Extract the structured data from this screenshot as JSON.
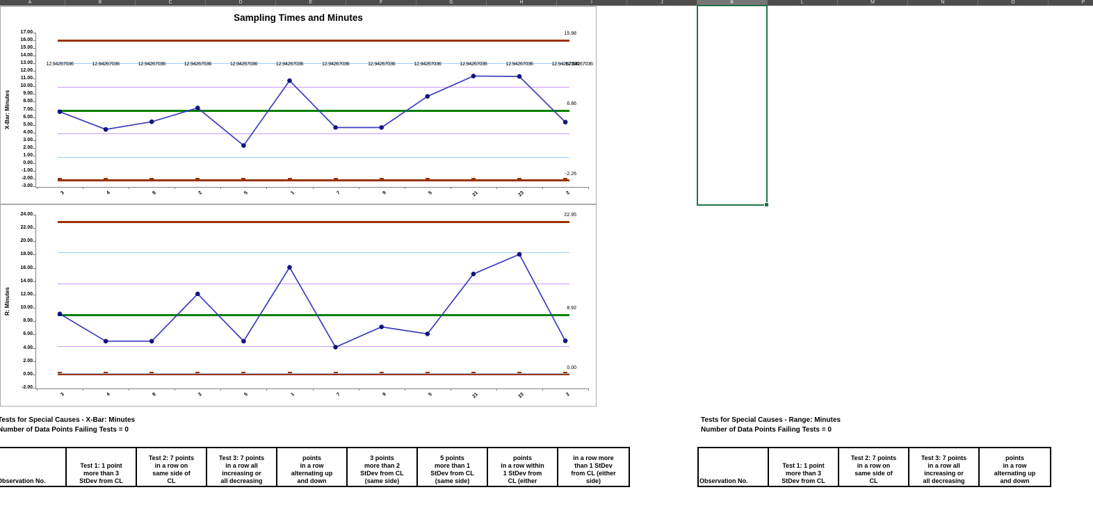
{
  "spreadsheet": {
    "column_headers": [
      "A",
      "B",
      "C",
      "D",
      "E",
      "F",
      "G",
      "H",
      "I",
      "J",
      "K",
      "L",
      "M",
      "N",
      "O",
      "P"
    ],
    "selected_column": "K"
  },
  "chart_data": [
    {
      "type": "line",
      "title": "Sampling Times and Minutes",
      "ylabel": "X-Bar: Minutes",
      "categories": [
        "3",
        "4",
        "8",
        "2",
        "5",
        "1",
        "7",
        "9",
        "5",
        "21",
        "23",
        "2"
      ],
      "series": [
        {
          "name": "X-Bar",
          "values": [
            6.7,
            4.4,
            5.4,
            7.2,
            2.3,
            10.75,
            4.65,
            4.65,
            8.7,
            11.35,
            11.3,
            5.35
          ]
        }
      ],
      "ylim": [
        -3,
        17
      ],
      "ytick_step": 1,
      "grid": false,
      "legend": "none",
      "series_line_color": "#3b3bbe",
      "series_marker_color": "#13137e",
      "control_lines": [
        {
          "name": "UCL",
          "value": 15.98,
          "label": "15.98",
          "color": "#993300",
          "weight": 3
        },
        {
          "name": "+2sigma",
          "value": 12.94267036,
          "point_label": "12.94267036",
          "color": "#99ccff",
          "weight": 1
        },
        {
          "name": "+1sigma",
          "value": 9.9,
          "color": "#cc99ff",
          "weight": 1
        },
        {
          "name": "CL",
          "value": 6.86,
          "label": "6.86",
          "color": "#008000",
          "weight": 3
        },
        {
          "name": "-1sigma",
          "value": 3.82,
          "color": "#cc99ff",
          "weight": 1
        },
        {
          "name": "-2sigma",
          "value": 0.78,
          "color": "#99ccff",
          "weight": 1
        },
        {
          "name": "LCL",
          "value": -2.26,
          "label": "-2.26",
          "color": "#993300",
          "weight": 3,
          "dashes": true
        }
      ]
    },
    {
      "type": "line",
      "title": "",
      "ylabel": "R: Minutes",
      "categories": [
        "3",
        "4",
        "8",
        "2",
        "5",
        "1",
        "7",
        "9",
        "5",
        "21",
        "23",
        "2"
      ],
      "series": [
        {
          "name": "Range",
          "values": [
            9.1,
            5.0,
            5.0,
            12.1,
            5.0,
            16.1,
            4.1,
            7.15,
            6.1,
            15.1,
            18.05,
            5.05
          ]
        }
      ],
      "ylim": [
        -2,
        24
      ],
      "ytick_step": 2,
      "grid": false,
      "legend": "none",
      "series_line_color": "#3b3bbe",
      "series_marker_color": "#13137e",
      "control_lines": [
        {
          "name": "UCL",
          "value": 22.95,
          "label": "22.95",
          "color": "#993300",
          "weight": 3
        },
        {
          "name": "+2sigma",
          "value": 18.27,
          "color": "#99ccff",
          "weight": 1
        },
        {
          "name": "+1sigma",
          "value": 13.6,
          "color": "#cc99ff",
          "weight": 1
        },
        {
          "name": "CL",
          "value": 8.92,
          "label": "8.92",
          "color": "#008000",
          "weight": 3
        },
        {
          "name": "-1sigma",
          "value": 4.24,
          "color": "#cc99ff",
          "weight": 1
        },
        {
          "name": "LCL",
          "value": 0.0,
          "label": "0.00",
          "color": "#993300",
          "weight": 3,
          "dashes": true
        },
        {
          "name": "-2sigma-clamped",
          "value": 0.1,
          "color": "#a8bdd4",
          "weight": 1
        }
      ]
    }
  ],
  "tables": [
    {
      "title": "Tests for Special Causes - X-Bar: Minutes",
      "subtitle": "Number of Data Points Failing Tests = 0",
      "headers": [
        "Observation No.",
        "Test 1: 1 point\nmore than 3\nStDev from CL",
        "Test 2: 7 points\nin a row on\nsame side of\nCL",
        "Test 3: 7 points\nin a row all\nincreasing or\nall decreasing",
        "points\nin a row\nalternating up\nand down",
        "3 points\nmore than 2\nStDev from CL\n(same side)",
        "5 points\nmore than 1\nStDev from CL\n(same side)",
        "points\nin a row within\n1 StDev from\nCL (either",
        "in a row more\nthan 1 StDev\nfrom CL (either\nside)"
      ]
    },
    {
      "title": "Tests for Special Causes - Range: Minutes",
      "subtitle": "Number of Data Points Failing Tests = 0",
      "headers": [
        "Observation No.",
        "Test 1: 1 point\nmore than 3\nStDev from CL",
        "Test 2: 7 points\nin a row on\nsame side of\nCL",
        "Test 3: 7 points\nin a row all\nincreasing or\nall decreasing",
        "points\nin a row\nalternating up\nand down"
      ]
    }
  ]
}
